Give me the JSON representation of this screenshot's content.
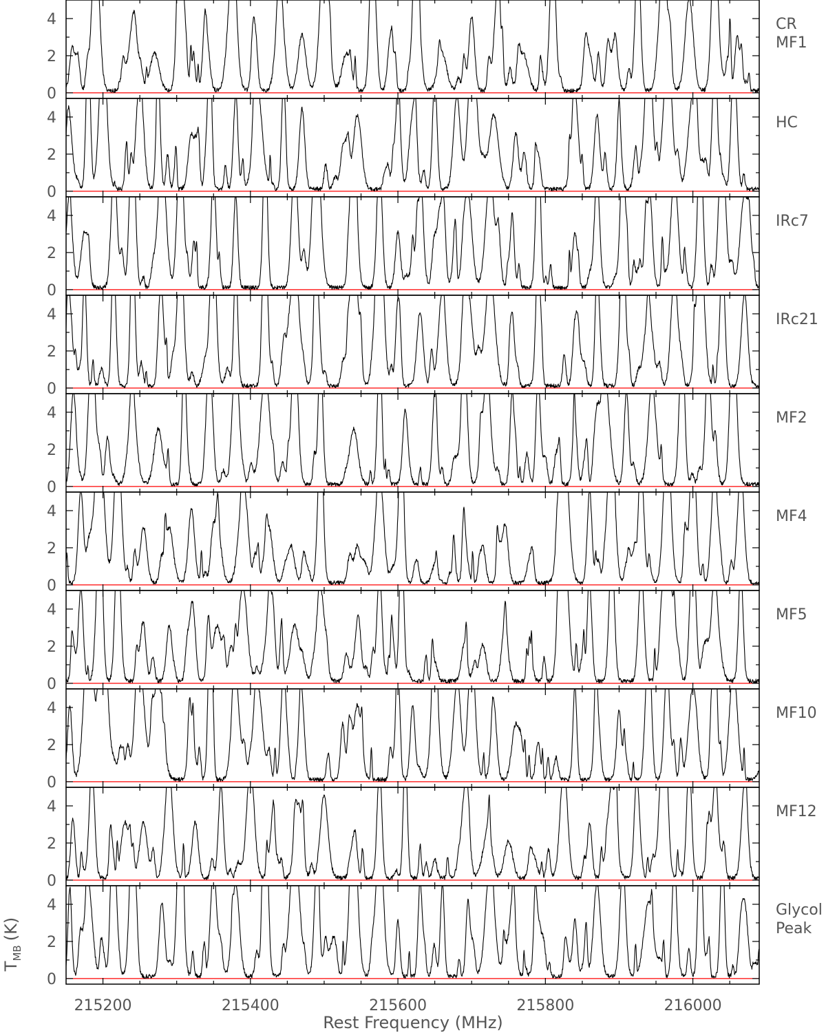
{
  "chart_data": {
    "type": "line",
    "title": "",
    "xlabel": "Rest Frequency (MHz)",
    "ylabel": "T_MB (K)",
    "ylabel_main": "T",
    "ylabel_sub": "MB",
    "ylabel_unit": "(K)",
    "xlim": [
      215150,
      216090
    ],
    "ylim": [
      -0.3,
      5.0
    ],
    "x_ticks": [
      215200,
      215400,
      215600,
      215800,
      216000
    ],
    "x_tick_labels": [
      "215200",
      "215400",
      "215600",
      "215800",
      "216000"
    ],
    "y_ticks": [
      0,
      2,
      4
    ],
    "y_tick_labels": [
      "0",
      "2",
      "4"
    ],
    "baseline_value": 0,
    "baseline_color": "#ff0000",
    "line_color": "#000000",
    "grid": false,
    "shared_x_axis": true,
    "panels": [
      {
        "label_lines": [
          "CR",
          "MF1"
        ],
        "line_centers": [
          215160,
          215190,
          215240,
          215270,
          215305,
          215340,
          215375,
          215405,
          215440,
          215470,
          215500,
          215530,
          215565,
          215590,
          215625,
          215660,
          215700,
          215735,
          215770,
          215810,
          215855,
          215890,
          215925,
          215960,
          215995,
          216030,
          216060
        ],
        "line_peaks": [
          2,
          8,
          3,
          2,
          8,
          3,
          6,
          2,
          5,
          3,
          7,
          2,
          8,
          3,
          6,
          2,
          4,
          5,
          2,
          8,
          3,
          2,
          6,
          7,
          5,
          8,
          2
        ]
      },
      {
        "label_lines": [
          "HC"
        ],
        "line_centers": [
          215155,
          215180,
          215200,
          215250,
          215275,
          215320,
          215345,
          215380,
          215410,
          215445,
          215470,
          215525,
          215545,
          215600,
          215620,
          215650,
          215680,
          215700,
          215730,
          215760,
          215790,
          215840,
          215870,
          215900,
          215940,
          215965,
          216000,
          216030,
          216055
        ],
        "line_peaks": [
          3,
          8,
          8,
          6,
          5,
          3,
          8,
          5,
          5,
          6,
          4,
          2,
          4,
          5,
          4,
          6,
          5,
          7,
          4,
          3,
          2,
          5,
          4,
          3,
          8,
          6,
          5,
          8,
          6
        ]
      },
      {
        "label_lines": [
          "IRc7"
        ],
        "line_centers": [
          215155,
          215175,
          215215,
          215240,
          215280,
          215305,
          215350,
          215380,
          215420,
          215460,
          215490,
          215540,
          215575,
          215600,
          215630,
          215660,
          215695,
          215725,
          215755,
          215790,
          215840,
          215870,
          215905,
          215940,
          215975,
          216010,
          216040,
          216070
        ],
        "line_peaks": [
          4,
          3,
          6,
          8,
          7,
          8,
          6,
          5,
          8,
          7,
          6,
          8,
          7,
          3,
          4,
          4,
          5,
          6,
          4,
          7,
          3,
          6,
          7,
          4,
          6,
          8,
          7,
          5
        ]
      },
      {
        "label_lines": [
          "IRc21"
        ],
        "line_centers": [
          215155,
          215175,
          215215,
          215240,
          215280,
          215305,
          215350,
          215380,
          215420,
          215460,
          215490,
          215540,
          215575,
          215600,
          215630,
          215660,
          215695,
          215725,
          215755,
          215790,
          215840,
          215870,
          215905,
          215940,
          215975,
          216010,
          216040,
          216070
        ],
        "line_peaks": [
          4,
          6,
          6,
          8,
          3,
          8,
          6,
          5,
          8,
          7,
          6,
          8,
          7,
          3,
          4,
          5,
          5,
          6,
          4,
          7,
          3,
          6,
          8,
          4,
          6,
          8,
          7,
          5
        ]
      },
      {
        "label_lines": [
          "MF2"
        ],
        "line_centers": [
          215160,
          215185,
          215240,
          215275,
          215310,
          215345,
          215380,
          215420,
          215460,
          215495,
          215540,
          215575,
          215610,
          215650,
          215690,
          215720,
          215755,
          215790,
          215840,
          215880,
          215910,
          215945,
          215985,
          216020,
          216055
        ],
        "line_peaks": [
          5,
          8,
          4,
          3,
          7,
          5,
          7,
          6,
          8,
          7,
          3,
          7,
          4,
          5,
          7,
          5,
          5,
          4,
          3,
          6,
          5,
          5,
          7,
          6,
          8
        ]
      },
      {
        "label_lines": [
          "MF4"
        ],
        "line_centers": [
          215170,
          215195,
          215220,
          215255,
          215290,
          215320,
          215355,
          215390,
          215425,
          215455,
          215495,
          215545,
          215575,
          215605,
          215650,
          215690,
          215715,
          215745,
          215780,
          215825,
          215860,
          215890,
          215930,
          215965,
          216000,
          216030,
          216065
        ],
        "line_peaks": [
          5,
          8,
          8,
          3,
          3,
          4,
          3,
          5,
          3,
          2,
          8,
          2,
          6,
          8,
          1,
          2,
          2,
          3,
          1,
          8,
          5,
          7,
          6,
          8,
          8,
          5,
          6
        ]
      },
      {
        "label_lines": [
          "MF5"
        ],
        "line_centers": [
          215170,
          215195,
          215220,
          215255,
          215290,
          215320,
          215355,
          215390,
          215425,
          215460,
          215495,
          215545,
          215575,
          215605,
          215650,
          215690,
          215715,
          215745,
          215780,
          215825,
          215860,
          215890,
          215930,
          215965,
          216000,
          216030,
          216065
        ],
        "line_peaks": [
          5,
          8,
          8,
          3,
          3,
          3,
          3,
          5,
          3,
          3,
          5,
          2,
          6,
          8,
          1,
          2,
          2,
          3,
          1,
          8,
          5,
          7,
          6,
          8,
          8,
          4,
          6
        ]
      },
      {
        "label_lines": [
          "MF10"
        ],
        "line_centers": [
          215155,
          215180,
          215200,
          215250,
          215275,
          215320,
          215345,
          215380,
          215410,
          215445,
          215470,
          215525,
          215545,
          215600,
          215620,
          215650,
          215680,
          215700,
          215730,
          215760,
          215790,
          215840,
          215870,
          215900,
          215940,
          215965,
          216000,
          216030,
          216055
        ],
        "line_peaks": [
          4,
          8,
          8,
          6,
          5,
          3,
          8,
          5,
          5,
          6,
          4,
          3,
          4,
          5,
          4,
          6,
          5,
          7,
          4,
          3,
          2,
          5,
          4,
          3,
          8,
          6,
          5,
          8,
          6
        ]
      },
      {
        "label_lines": [
          "MF12"
        ],
        "line_centers": [
          215160,
          215185,
          215230,
          215255,
          215290,
          215325,
          215360,
          215400,
          215430,
          215465,
          215500,
          215540,
          215575,
          215610,
          215650,
          215690,
          215720,
          215750,
          215785,
          215825,
          215860,
          215890,
          215925,
          215960,
          215995,
          216030,
          216070
        ],
        "line_peaks": [
          2,
          6,
          3,
          3,
          5,
          3,
          5,
          6,
          3,
          4,
          4,
          2,
          5,
          7,
          1,
          3,
          2,
          2,
          1,
          6,
          3,
          5,
          4,
          8,
          6,
          4,
          5
        ]
      },
      {
        "label_lines": [
          "Glycol",
          "Peak"
        ],
        "line_centers": [
          215155,
          215180,
          215215,
          215240,
          215280,
          215305,
          215350,
          215380,
          215420,
          215460,
          215490,
          215540,
          215575,
          215600,
          215630,
          215660,
          215695,
          215725,
          215755,
          215790,
          215840,
          215870,
          215905,
          215940,
          215975,
          216010,
          216040,
          216070
        ],
        "line_peaks": [
          4,
          5,
          6,
          8,
          4,
          8,
          6,
          5,
          8,
          7,
          6,
          8,
          7,
          3,
          4,
          4,
          4,
          6,
          4,
          3,
          3,
          5,
          6,
          4,
          6,
          8,
          7,
          4
        ]
      }
    ]
  }
}
